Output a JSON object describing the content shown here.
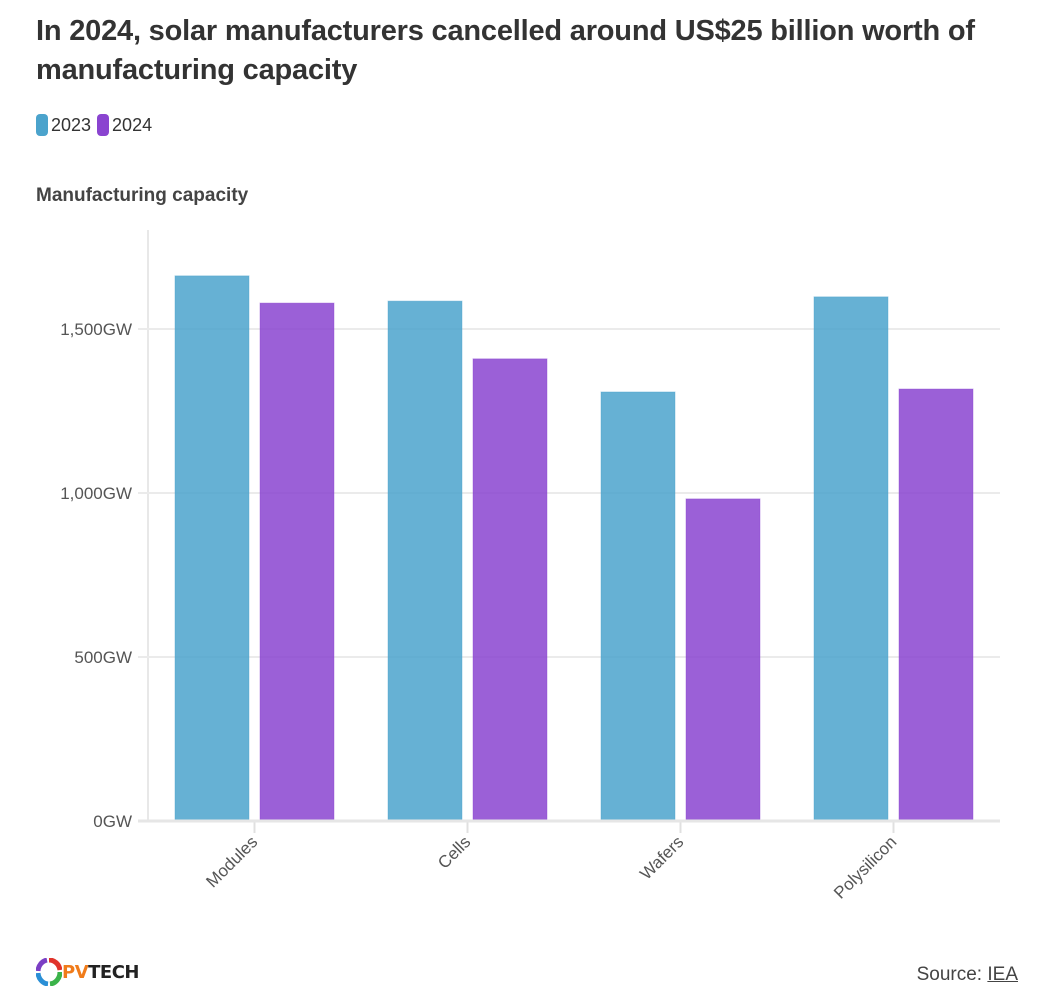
{
  "title": "In 2024, solar manufacturers cancelled around US$25 billion worth of manufacturing capacity",
  "subtitle": "Manufacturing capacity",
  "legend": [
    {
      "label": "2023",
      "color": "#4ba3cc"
    },
    {
      "label": "2024",
      "color": "#8a44d0"
    }
  ],
  "footer": {
    "logo_pv": "PV",
    "logo_tech": "TECH",
    "source_label": "Source:",
    "source_link": "IEA"
  },
  "chart_data": {
    "type": "bar",
    "title": "In 2024, solar manufacturers cancelled around US$25 billion worth of manufacturing capacity",
    "ylabel": "Manufacturing capacity",
    "xlabel": "",
    "categories": [
      "Modules",
      "Cells",
      "Wafers",
      "Polysilicon"
    ],
    "series": [
      {
        "name": "2023",
        "color": "#4ba3cc",
        "values": [
          1662,
          1585,
          1308,
          1598
        ]
      },
      {
        "name": "2024",
        "color": "#8a44d0",
        "values": [
          1579,
          1409,
          982,
          1317
        ]
      }
    ],
    "ylim": [
      0,
      1800
    ],
    "yticks": [
      0,
      500,
      1000,
      1500
    ],
    "ytick_labels": [
      "0GW",
      "500GW",
      "1,000GW",
      "1,500GW"
    ],
    "grid": true,
    "legend_position": "top-left"
  }
}
